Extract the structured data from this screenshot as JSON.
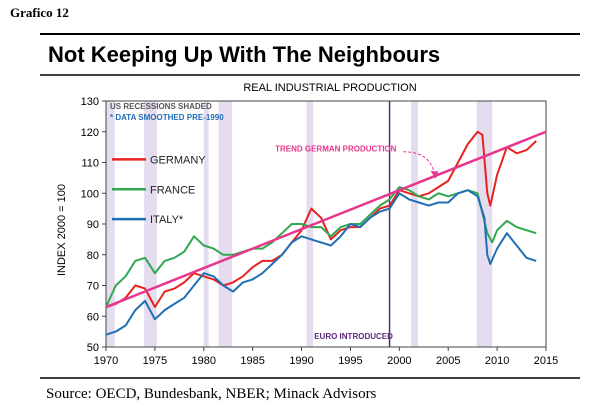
{
  "figure_label": "Grafico 12",
  "chart_data": {
    "type": "line",
    "title": "Not Keeping Up With The Neighbours",
    "subtitle": "REAL INDUSTRIAL PRODUCTION",
    "ylabel": "INDEX 2000 = 100",
    "xlabel": "",
    "xlim": [
      1970,
      2015
    ],
    "ylim": [
      50,
      130
    ],
    "x_ticks": [
      1970,
      1975,
      1980,
      1985,
      1990,
      1995,
      2000,
      2005,
      2010,
      2015
    ],
    "y_ticks": [
      50,
      60,
      70,
      80,
      90,
      100,
      110,
      120,
      130
    ],
    "notes": [
      "US RECESSIONS SHADED",
      "* DATA SMOOTHED PRE-1990"
    ],
    "recessions": [
      [
        1970,
        1970.9
      ],
      [
        1973.9,
        1975.2
      ],
      [
        1980,
        1980.5
      ],
      [
        1981.5,
        1982.9
      ],
      [
        1990.5,
        1991.2
      ],
      [
        2001.2,
        2001.9
      ],
      [
        2007.9,
        2009.5
      ]
    ],
    "euro_line": {
      "x": 1999,
      "label": "EURO INTRODUCED"
    },
    "trend": {
      "label": "TREND GERMAN PRODUCTION",
      "from": [
        1970,
        63
      ],
      "to": [
        2015,
        120
      ],
      "color": "#e8358e"
    },
    "series": [
      {
        "name": "GERMANY",
        "color": "#e8231f",
        "points": [
          [
            1970,
            63
          ],
          [
            1971,
            64
          ],
          [
            1972,
            66
          ],
          [
            1973,
            70
          ],
          [
            1974,
            69
          ],
          [
            1975,
            63
          ],
          [
            1976,
            68
          ],
          [
            1977,
            69
          ],
          [
            1978,
            71
          ],
          [
            1979,
            74
          ],
          [
            1980,
            73
          ],
          [
            1981,
            72
          ],
          [
            1982,
            70
          ],
          [
            1983,
            71
          ],
          [
            1984,
            73
          ],
          [
            1985,
            76
          ],
          [
            1986,
            78
          ],
          [
            1987,
            78
          ],
          [
            1988,
            80
          ],
          [
            1989,
            84
          ],
          [
            1990,
            88
          ],
          [
            1991,
            95
          ],
          [
            1992,
            92
          ],
          [
            1993,
            85
          ],
          [
            1994,
            88
          ],
          [
            1995,
            89
          ],
          [
            1996,
            89
          ],
          [
            1997,
            92
          ],
          [
            1998,
            95
          ],
          [
            1999,
            96
          ],
          [
            2000,
            101
          ],
          [
            2001,
            100
          ],
          [
            2002,
            99
          ],
          [
            2003,
            100
          ],
          [
            2004,
            102
          ],
          [
            2005,
            104
          ],
          [
            2006,
            110
          ],
          [
            2007,
            116
          ],
          [
            2008,
            120
          ],
          [
            2008.5,
            119
          ],
          [
            2009,
            100
          ],
          [
            2009.3,
            96
          ],
          [
            2010,
            106
          ],
          [
            2011,
            115
          ],
          [
            2012,
            113
          ],
          [
            2013,
            114
          ],
          [
            2014,
            117
          ]
        ]
      },
      {
        "name": "FRANCE",
        "color": "#2fa84f",
        "points": [
          [
            1970,
            63
          ],
          [
            1971,
            70
          ],
          [
            1972,
            73
          ],
          [
            1973,
            78
          ],
          [
            1974,
            79
          ],
          [
            1975,
            74
          ],
          [
            1976,
            78
          ],
          [
            1977,
            79
          ],
          [
            1978,
            81
          ],
          [
            1979,
            86
          ],
          [
            1980,
            83
          ],
          [
            1981,
            82
          ],
          [
            1982,
            80
          ],
          [
            1983,
            80
          ],
          [
            1984,
            81
          ],
          [
            1985,
            82
          ],
          [
            1986,
            82
          ],
          [
            1987,
            84
          ],
          [
            1988,
            87
          ],
          [
            1989,
            90
          ],
          [
            1990,
            90
          ],
          [
            1991,
            89
          ],
          [
            1992,
            89
          ],
          [
            1993,
            86
          ],
          [
            1994,
            89
          ],
          [
            1995,
            90
          ],
          [
            1996,
            90
          ],
          [
            1997,
            93
          ],
          [
            1998,
            96
          ],
          [
            1999,
            98
          ],
          [
            2000,
            102
          ],
          [
            2001,
            101
          ],
          [
            2002,
            99
          ],
          [
            2003,
            98
          ],
          [
            2004,
            100
          ],
          [
            2005,
            99
          ],
          [
            2006,
            100
          ],
          [
            2007,
            101
          ],
          [
            2008,
            100
          ],
          [
            2009,
            87
          ],
          [
            2009.5,
            84
          ],
          [
            2010,
            88
          ],
          [
            2011,
            91
          ],
          [
            2012,
            89
          ],
          [
            2013,
            88
          ],
          [
            2014,
            87
          ]
        ]
      },
      {
        "name": "ITALY*",
        "color": "#1f6fb5",
        "points": [
          [
            1970,
            54
          ],
          [
            1971,
            55
          ],
          [
            1972,
            57
          ],
          [
            1973,
            62
          ],
          [
            1974,
            65
          ],
          [
            1975,
            59
          ],
          [
            1976,
            62
          ],
          [
            1977,
            64
          ],
          [
            1978,
            66
          ],
          [
            1979,
            70
          ],
          [
            1980,
            74
          ],
          [
            1981,
            73
          ],
          [
            1982,
            70
          ],
          [
            1983,
            68
          ],
          [
            1984,
            71
          ],
          [
            1985,
            72
          ],
          [
            1986,
            74
          ],
          [
            1987,
            77
          ],
          [
            1988,
            80
          ],
          [
            1989,
            84
          ],
          [
            1990,
            86
          ],
          [
            1991,
            85
          ],
          [
            1992,
            84
          ],
          [
            1993,
            83
          ],
          [
            1994,
            86
          ],
          [
            1995,
            90
          ],
          [
            1996,
            89
          ],
          [
            1997,
            92
          ],
          [
            1998,
            94
          ],
          [
            1999,
            95
          ],
          [
            2000,
            100
          ],
          [
            2001,
            98
          ],
          [
            2002,
            97
          ],
          [
            2003,
            96
          ],
          [
            2004,
            97
          ],
          [
            2005,
            97
          ],
          [
            2006,
            100
          ],
          [
            2007,
            101
          ],
          [
            2008,
            99
          ],
          [
            2008.7,
            92
          ],
          [
            2009,
            80
          ],
          [
            2009.3,
            77
          ],
          [
            2010,
            82
          ],
          [
            2011,
            87
          ],
          [
            2012,
            83
          ],
          [
            2013,
            79
          ],
          [
            2014,
            78
          ]
        ]
      }
    ]
  },
  "source": "Source: OECD, Bundesbank, NBER; Minack Advisors"
}
